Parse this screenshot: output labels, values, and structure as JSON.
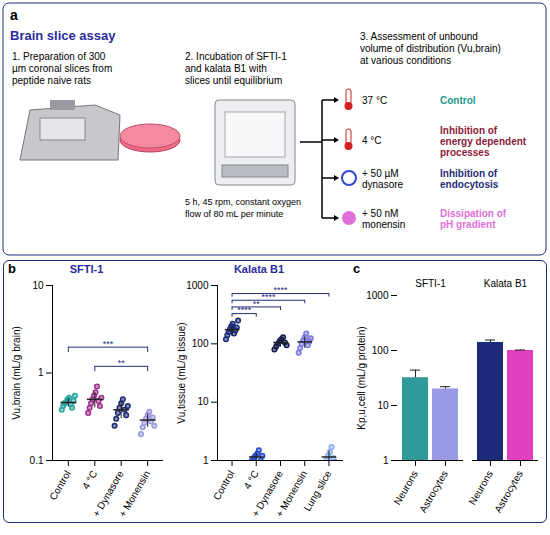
{
  "panel_labels": [
    "a",
    "b",
    "c"
  ],
  "panel_a": {
    "title": "Brain slice assay",
    "steps": [
      [
        "1. Preparation of 300",
        "µm coronal slices from",
        "peptide naive rats"
      ],
      [
        "2. Incubation of SFTI-1",
        "and kalata B1 with",
        "slices until equilibrium"
      ],
      [
        "3. Assessment of unbound",
        "volume of distribution (Vu,brain)",
        "at various conditions"
      ]
    ],
    "incubation_conditions": [
      "5 h, 45 rpm, constant oxygen",
      "flow of 80 mL per minute"
    ],
    "conditions": [
      {
        "label": [
          "37 °C"
        ],
        "purpose": [
          "Control"
        ],
        "color": "#1a9a8a"
      },
      {
        "label": [
          "4 °C"
        ],
        "purpose": [
          "Inhibition of",
          "energy dependent",
          "processes"
        ],
        "color": "#8b1a3a"
      },
      {
        "label": [
          "+ 50 µM",
          "dynasore"
        ],
        "purpose": [
          "Inhibition of",
          "endocytosis"
        ],
        "color": "#1f2d7a"
      },
      {
        "label": [
          "+ 50 nM",
          "monensin"
        ],
        "purpose": [
          "Dissipation of",
          "pH gradient"
        ],
        "color": "#e070d8"
      }
    ]
  },
  "chart_data": [
    {
      "type": "scatter",
      "title": "SFTI-1",
      "ylabel": "Vu,brain (mL/g brain)",
      "categories": [
        "Control",
        "4 °C",
        "+ Dynasore",
        "+ Monensin"
      ],
      "points": [
        [
          0.38,
          0.42,
          0.45,
          0.47,
          0.5,
          0.52,
          0.44,
          0.4,
          0.48,
          0.55
        ],
        [
          0.35,
          0.4,
          0.45,
          0.5,
          0.55,
          0.6,
          0.7,
          0.48,
          0.42,
          0.52
        ],
        [
          0.25,
          0.3,
          0.35,
          0.4,
          0.45,
          0.5,
          0.38,
          0.33,
          0.42
        ],
        [
          0.2,
          0.24,
          0.27,
          0.3,
          0.33,
          0.36,
          0.28,
          0.31,
          0.25
        ]
      ],
      "values": [
        0.46,
        0.5,
        0.38,
        0.29
      ],
      "error": [
        0.05,
        0.1,
        0.08,
        0.05
      ],
      "colors": [
        "#2aa5a0",
        "#a0308e",
        "#1c2a6c",
        "#9a9ae0"
      ],
      "marker": "circle",
      "log": "y",
      "ylim": [
        0.1,
        10
      ],
      "yticks": [
        0.1,
        1,
        10
      ],
      "significance": [
        {
          "from": "4 °C",
          "to": "+ Monensin",
          "label": "**"
        },
        {
          "from": "Control",
          "to": "+ Monensin",
          "label": "***"
        }
      ]
    },
    {
      "type": "scatter",
      "title": "Kalata B1",
      "ylabel": "Vu,tissue (mL/g tissue)",
      "categories": [
        "Control",
        "4 °C",
        "+ Dynasore",
        "+ Monensin",
        "Lung slice"
      ],
      "points": [
        [
          120,
          140,
          160,
          180,
          200,
          220,
          150,
          170,
          190,
          250
        ],
        [
          0.8,
          1,
          1.1,
          1.2,
          1.3,
          1.5,
          1,
          1.2
        ],
        [
          80,
          90,
          100,
          110,
          120,
          130,
          105,
          95
        ],
        [
          70,
          85,
          100,
          115,
          130,
          150,
          95,
          110,
          125
        ],
        [
          0.7,
          0.9,
          1,
          1.2,
          1.4,
          1.7,
          1.1,
          0.95
        ]
      ],
      "values": [
        175,
        1.15,
        105,
        108,
        1.15
      ],
      "error": [
        40,
        0.2,
        17,
        24,
        0.3
      ],
      "colors": [
        "#1c2a7a",
        "#2a4ad0",
        "#141c4c",
        "#7a7ae0",
        "#8ab0f0"
      ],
      "marker": "circle",
      "log": "y",
      "ylim": [
        1,
        1000
      ],
      "yticks": [
        1,
        10,
        100,
        1000
      ],
      "significance": [
        {
          "from": "Control",
          "to": "4 °C",
          "label": "****"
        },
        {
          "from": "Control",
          "to": "+ Dynasore",
          "label": "**"
        },
        {
          "from": "Control",
          "to": "+ Monensin",
          "label": "****"
        },
        {
          "from": "Control",
          "to": "Lung slice",
          "label": "****"
        }
      ]
    },
    {
      "type": "bar",
      "ylabel": "Kp,u,cell (mL/g protein)",
      "groups": [
        {
          "name": "SFTI-1",
          "categories": [
            "Neurons",
            "Astrocytes"
          ],
          "values": [
            32,
            20
          ],
          "error": [
            12,
            2
          ],
          "colors": [
            "#2f9a9a",
            "#9a9ae6"
          ]
        },
        {
          "name": "Kalata B1",
          "categories": [
            "Neurons",
            "Astrocytes"
          ],
          "values": [
            140,
            100
          ],
          "error": [
            15,
            2
          ],
          "colors": [
            "#1c2a7a",
            "#e040c0"
          ]
        }
      ],
      "log": "y",
      "ylim": [
        1,
        1000
      ],
      "yticks": [
        1,
        10,
        100,
        1000
      ]
    }
  ]
}
